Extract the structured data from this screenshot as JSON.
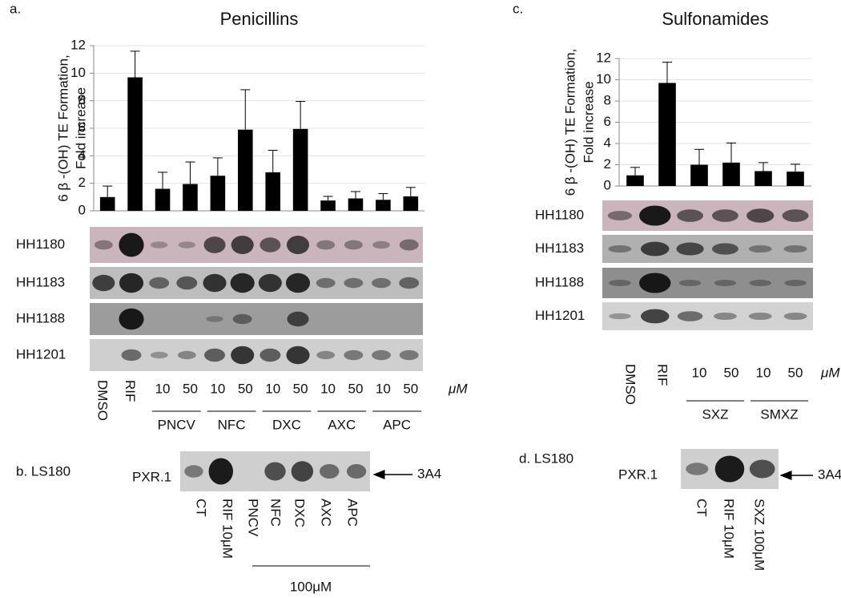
{
  "chart_data": [
    {
      "type": "bar",
      "panel": "a.",
      "title": "Penicillins",
      "y_label": [
        "6 β -(OH) TE Formation,",
        "Fold increase"
      ],
      "categories": [
        "DMSO",
        "RIF",
        "10",
        "50",
        "10",
        "50",
        "10",
        "50",
        "10",
        "50",
        "10",
        "50"
      ],
      "groups": [
        "PNCV",
        "NFC",
        "DXC",
        "AXC",
        "APC"
      ],
      "unit": "μM",
      "values": [
        1.0,
        9.7,
        1.6,
        1.95,
        2.55,
        5.9,
        2.8,
        5.95,
        0.75,
        0.9,
        0.8,
        1.05
      ],
      "errors": [
        0.8,
        1.9,
        1.2,
        1.6,
        1.3,
        2.9,
        1.6,
        2.0,
        0.3,
        0.5,
        0.45,
        0.65
      ],
      "color": "#000000",
      "ylim": [
        0,
        12
      ],
      "yticks": [
        0,
        2,
        4,
        6,
        8,
        10,
        12
      ],
      "grid": true,
      "blot_rows": [
        "HH1180",
        "HH1183",
        "HH1188",
        "HH1201"
      ]
    },
    {
      "type": "bar",
      "panel": "c.",
      "title": "Sulfonamides",
      "y_label": [
        "6 β -(OH) TE Formation,",
        "Fold increase"
      ],
      "categories": [
        "DMSO",
        "RIF",
        "10",
        "50",
        "10",
        "50"
      ],
      "groups": [
        "SXZ",
        "SMXZ"
      ],
      "unit": "μM",
      "values": [
        1.0,
        9.7,
        2.0,
        2.2,
        1.4,
        1.35
      ],
      "errors": [
        0.75,
        1.95,
        1.45,
        1.85,
        0.8,
        0.7
      ],
      "color": "#000000",
      "ylim": [
        0,
        12
      ],
      "yticks": [
        0,
        2,
        4,
        6,
        8,
        10,
        12
      ],
      "grid": true,
      "blot_rows": [
        "HH1180",
        "HH1183",
        "HH1188",
        "HH1201"
      ]
    }
  ],
  "blots": [
    {
      "panel": "b. LS180",
      "row": "PXR.1",
      "marker": "3A4",
      "lanes": [
        "CT",
        "RIF 10μM",
        "PNCV",
        "NFC",
        "DXC",
        "AXC",
        "APC"
      ],
      "bracket": "100μM"
    },
    {
      "panel": "d. LS180",
      "row": "PXR.1",
      "marker": "3A4",
      "lanes": [
        "CT",
        "RIF 10μM",
        "SXZ 100μM"
      ]
    }
  ]
}
